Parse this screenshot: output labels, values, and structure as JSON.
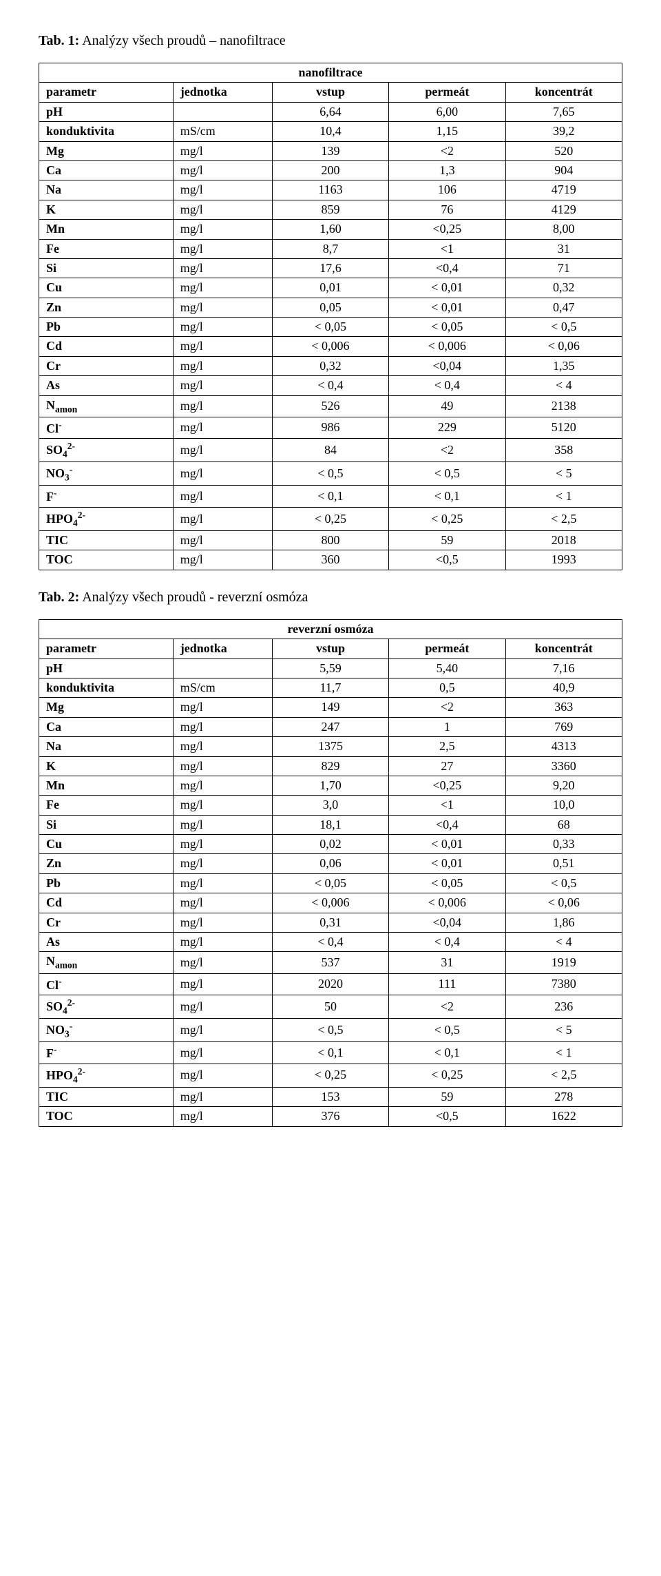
{
  "caption1_bold": "Tab. 1:",
  "caption1_rest": " Analýzy všech proudů – nanofiltrace",
  "caption2_bold": "Tab. 2:",
  "caption2_rest": " Analýzy všech proudů - reverzní osmóza",
  "title1": "nanofiltrace",
  "title2": "reverzní osmóza",
  "head": {
    "param": "parametr",
    "unit": "jednotka",
    "in": "vstup",
    "perm": "permeát",
    "conc": "koncentrát"
  },
  "params": [
    {
      "key": "ph",
      "html": "pH",
      "unit": ""
    },
    {
      "key": "kond",
      "html": "konduktivita",
      "unit": "mS/cm"
    },
    {
      "key": "mg",
      "html": "Mg",
      "unit": "mg/l"
    },
    {
      "key": "ca",
      "html": "Ca",
      "unit": "mg/l"
    },
    {
      "key": "na",
      "html": "Na",
      "unit": "mg/l"
    },
    {
      "key": "k",
      "html": "K",
      "unit": "mg/l"
    },
    {
      "key": "mn",
      "html": "Mn",
      "unit": "mg/l"
    },
    {
      "key": "fe",
      "html": "Fe",
      "unit": "mg/l"
    },
    {
      "key": "si",
      "html": "Si",
      "unit": "mg/l"
    },
    {
      "key": "cu",
      "html": "Cu",
      "unit": "mg/l"
    },
    {
      "key": "zn",
      "html": "Zn",
      "unit": "mg/l"
    },
    {
      "key": "pb",
      "html": "Pb",
      "unit": "mg/l"
    },
    {
      "key": "cd",
      "html": "Cd",
      "unit": "mg/l"
    },
    {
      "key": "cr",
      "html": "Cr",
      "unit": "mg/l"
    },
    {
      "key": "as",
      "html": "As",
      "unit": "mg/l"
    },
    {
      "key": "namon",
      "html": "N<span class=\"sub\">amon</span>",
      "unit": "mg/l"
    },
    {
      "key": "cl",
      "html": "Cl<span class=\"sup\">-</span>",
      "unit": "mg/l"
    },
    {
      "key": "so4",
      "html": "SO<span class=\"sub\">4</span><span class=\"sup\">2-</span>",
      "unit": "mg/l"
    },
    {
      "key": "no3",
      "html": "NO<span class=\"sub\">3</span><span class=\"sup\">-</span>",
      "unit": "mg/l"
    },
    {
      "key": "f",
      "html": "F<span class=\"sup\">-</span>",
      "unit": "mg/l"
    },
    {
      "key": "hpo4",
      "html": "HPO<span class=\"sub\">4</span><span class=\"sup\">2-</span>",
      "unit": "mg/l"
    },
    {
      "key": "tic",
      "html": "TIC",
      "unit": "mg/l"
    },
    {
      "key": "toc",
      "html": "TOC",
      "unit": "mg/l"
    }
  ],
  "t1": {
    "ph": [
      "6,64",
      "6,00",
      "7,65"
    ],
    "kond": [
      "10,4",
      "1,15",
      "39,2"
    ],
    "mg": [
      "139",
      "<2",
      "520"
    ],
    "ca": [
      "200",
      "1,3",
      "904"
    ],
    "na": [
      "1163",
      "106",
      "4719"
    ],
    "k": [
      "859",
      "76",
      "4129"
    ],
    "mn": [
      "1,60",
      "<0,25",
      "8,00"
    ],
    "fe": [
      "8,7",
      "<1",
      "31"
    ],
    "si": [
      "17,6",
      "<0,4",
      "71"
    ],
    "cu": [
      "0,01",
      "< 0,01",
      "0,32"
    ],
    "zn": [
      "0,05",
      "< 0,01",
      "0,47"
    ],
    "pb": [
      "< 0,05",
      "< 0,05",
      "< 0,5"
    ],
    "cd": [
      "< 0,006",
      "< 0,006",
      "< 0,06"
    ],
    "cr": [
      "0,32",
      "<0,04",
      "1,35"
    ],
    "as": [
      "< 0,4",
      "< 0,4",
      "< 4"
    ],
    "namon": [
      "526",
      "49",
      "2138"
    ],
    "cl": [
      "986",
      "229",
      "5120"
    ],
    "so4": [
      "84",
      "<2",
      "358"
    ],
    "no3": [
      "< 0,5",
      "< 0,5",
      "< 5"
    ],
    "f": [
      "< 0,1",
      "< 0,1",
      "< 1"
    ],
    "hpo4": [
      "< 0,25",
      "< 0,25",
      "< 2,5"
    ],
    "tic": [
      "800",
      "59",
      "2018"
    ],
    "toc": [
      "360",
      "<0,5",
      "1993"
    ]
  },
  "t2": {
    "ph": [
      "5,59",
      "5,40",
      "7,16"
    ],
    "kond": [
      "11,7",
      "0,5",
      "40,9"
    ],
    "mg": [
      "149",
      "<2",
      "363"
    ],
    "ca": [
      "247",
      "1",
      "769"
    ],
    "na": [
      "1375",
      "2,5",
      "4313"
    ],
    "k": [
      "829",
      "27",
      "3360"
    ],
    "mn": [
      "1,70",
      "<0,25",
      "9,20"
    ],
    "fe": [
      "3,0",
      "<1",
      "10,0"
    ],
    "si": [
      "18,1",
      "<0,4",
      "68"
    ],
    "cu": [
      "0,02",
      "< 0,01",
      "0,33"
    ],
    "zn": [
      "0,06",
      "< 0,01",
      "0,51"
    ],
    "pb": [
      "< 0,05",
      "< 0,05",
      "< 0,5"
    ],
    "cd": [
      "< 0,006",
      "< 0,006",
      "< 0,06"
    ],
    "cr": [
      "0,31",
      "<0,04",
      "1,86"
    ],
    "as": [
      "< 0,4",
      "< 0,4",
      "< 4"
    ],
    "namon": [
      "537",
      "31",
      "1919"
    ],
    "cl": [
      "2020",
      "111",
      "7380"
    ],
    "so4": [
      "50",
      "<2",
      "236"
    ],
    "no3": [
      "< 0,5",
      "< 0,5",
      "< 5"
    ],
    "f": [
      "< 0,1",
      "< 0,1",
      "< 1"
    ],
    "hpo4": [
      "< 0,25",
      "< 0,25",
      "< 2,5"
    ],
    "tic": [
      "153",
      "59",
      "278"
    ],
    "toc": [
      "376",
      "<0,5",
      "1622"
    ]
  }
}
